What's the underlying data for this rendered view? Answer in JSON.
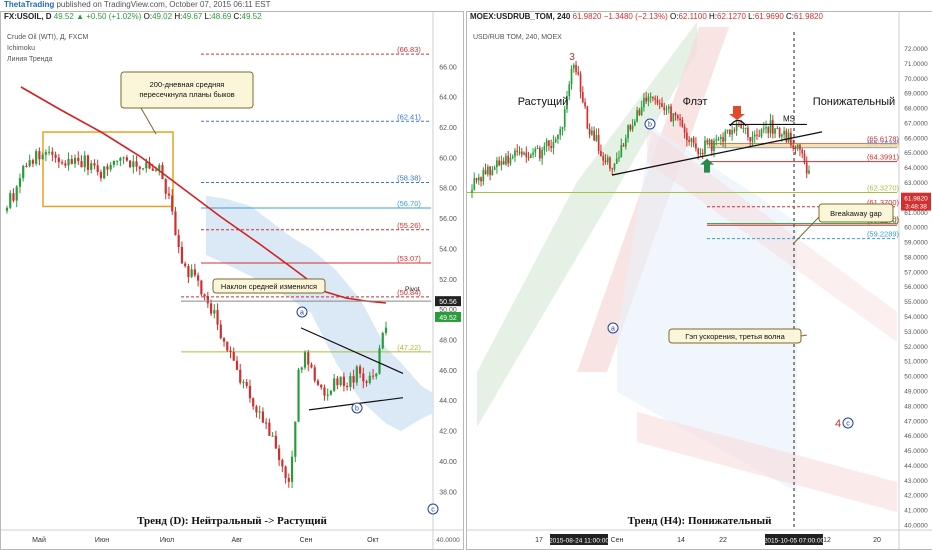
{
  "header": {
    "brand": "ThetaTrading",
    "published": "published on TradingView.com, October 07, 2015 06:11 EST"
  },
  "left": {
    "symbol": "FX:USOIL, D",
    "last": "49.52",
    "change": "+0.50 (+1.02%)",
    "ohlc": [
      {
        "k": "O:",
        "v": "49.02"
      },
      {
        "k": "H:",
        "v": "49.67"
      },
      {
        "k": "L:",
        "v": "48.69"
      },
      {
        "k": "C:",
        "v": "49.52"
      }
    ],
    "indicators": [
      "Crude Oil (WTI), Д, FXCM",
      "Ichimoku",
      "Линия Тренда"
    ],
    "caption": "Тренд (D): Нейтральный -> Растущий"
  },
  "right": {
    "symbol": "MOEX:USDRUB_TOM, 240",
    "last": "61.9820",
    "change": "−1.3480 (−2.13%)",
    "ohlc": [
      {
        "k": "O:",
        "v": "62.1100"
      },
      {
        "k": "H:",
        "v": "62.1270"
      },
      {
        "k": "L:",
        "v": "61.9690"
      },
      {
        "k": "C:",
        "v": "61.9820"
      }
    ],
    "indicators": [
      "USD/RUB TOM, 240, MOEX"
    ],
    "caption": "Тренд (H4): Понижательный"
  },
  "chart_data": [
    {
      "type": "candlestick",
      "ylim": [
        37,
        67.5
      ],
      "y_ticks": [
        38.0,
        40.0,
        42.0,
        44.0,
        46.0,
        48.0,
        50.0,
        52.0,
        54.0,
        56.0,
        58.0,
        60.0,
        62.0,
        64.0,
        66.0
      ],
      "x_labels": [
        "Май",
        "Июн",
        "Июл",
        "Авг",
        "Сен",
        "Окт"
      ],
      "price_badges": [
        {
          "label": "50.56",
          "value": 50.56,
          "color": "#222222"
        },
        {
          "label": "49.52",
          "value": 49.52,
          "color": "#2a9d3b"
        }
      ],
      "pivot_label": "Pivot",
      "bottom_right_label": "40.0000",
      "levels": [
        {
          "label": "66.83",
          "value": 66.83,
          "color": "#d23030",
          "dash": true
        },
        {
          "label": "62.41",
          "value": 62.41,
          "color": "#3a78c8",
          "dash": true
        },
        {
          "label": "58.38",
          "value": 58.38,
          "color": "#3a78c8",
          "dash": true
        },
        {
          "label": "56.70",
          "value": 56.7,
          "color": "#3a9fd0",
          "dash": false
        },
        {
          "label": "55.26",
          "value": 55.26,
          "color": "#d23030",
          "dash": true
        },
        {
          "label": "53.07",
          "value": 53.07,
          "color": "#d23030",
          "dash": false
        },
        {
          "label": "50.84",
          "value": 50.84,
          "color": "#d23030",
          "dash": true
        },
        {
          "label": "47.22",
          "value": 47.22,
          "color": "#a8c040",
          "dash": false
        }
      ],
      "annotations": [
        {
          "text": "200-дневная средняя пересечкнула планы быков"
        },
        {
          "text": "Наклон средней изменился"
        }
      ],
      "wave_labels": [
        "a",
        "b",
        "c"
      ]
    },
    {
      "type": "candlestick",
      "ylim": [
        39.8,
        72.3
      ],
      "y_ticks": [
        40.0,
        41.0,
        42.0,
        43.0,
        44.0,
        45.0,
        46.0,
        47.0,
        48.0,
        49.0,
        50.0,
        51.0,
        52.0,
        53.0,
        54.0,
        55.0,
        56.0,
        57.0,
        58.0,
        59.0,
        60.0,
        61.0,
        62.0,
        63.0,
        64.0,
        65.0,
        66.0,
        67.0,
        68.0,
        69.0,
        70.0,
        71.0,
        72.0
      ],
      "x_labels": [
        "17",
        "Сен",
        "14",
        "22",
        "12",
        "20"
      ],
      "time_badges": [
        "2015-08-24 11:00:00",
        "2015-10-05 07:00:00"
      ],
      "price_badges": [
        {
          "label": "61.9820",
          "value": 61.98,
          "color": "#d23030"
        },
        {
          "label": "3:48:38",
          "value": 61.45,
          "color": "#d23030"
        }
      ],
      "levels": [
        {
          "label": "65.6178",
          "value": 65.62,
          "color": "#d23030",
          "dash": false
        },
        {
          "label": "65.3434",
          "value": 65.34,
          "color": "#3a78c8",
          "dash": false
        },
        {
          "label": "64.3991",
          "value": 64.4,
          "color": "#d23030",
          "dash": false
        },
        {
          "label": "62.3270",
          "value": 62.33,
          "color": "#a8c040",
          "dash": false
        },
        {
          "label": "61.3700",
          "value": 61.37,
          "color": "#d23030",
          "dash": true
        },
        {
          "label": "60.2390",
          "value": 60.24,
          "color": "#2a9d3b",
          "dash": false
        },
        {
          "label": "60.1270",
          "value": 60.13,
          "color": "#d23030",
          "dash": false
        },
        {
          "label": "59.2289",
          "value": 59.23,
          "color": "#3a9fd0",
          "dash": true
        }
      ],
      "phase_labels": [
        "Растущий",
        "Флэт",
        "Понижательный"
      ],
      "annotations": [
        {
          "text": "Breakaway gap"
        },
        {
          "text": "Гэп ускорения, третья волна"
        },
        {
          "text": "MS"
        }
      ],
      "wave_labels": [
        "3",
        "a",
        "b",
        "4",
        "c"
      ]
    }
  ]
}
